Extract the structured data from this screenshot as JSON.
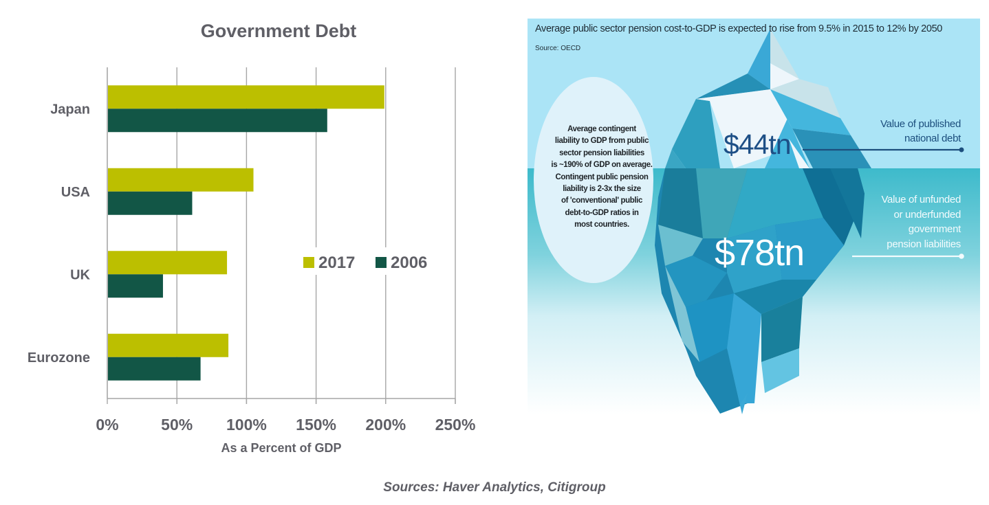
{
  "chart_data": {
    "type": "bar",
    "orientation": "horizontal",
    "title": "Government Debt",
    "xlabel": "As a Percent of GDP",
    "ylabel": "",
    "categories": [
      "Japan",
      "USA",
      "UK",
      "Eurozone"
    ],
    "series": [
      {
        "name": "2017",
        "color": "#bcbf00",
        "values": [
          199,
          105,
          86,
          87
        ]
      },
      {
        "name": "2006",
        "color": "#125646",
        "values": [
          158,
          61,
          40,
          67
        ]
      }
    ],
    "xlim": [
      0,
      250
    ],
    "x_ticks": [
      0,
      50,
      100,
      150,
      200,
      250
    ],
    "x_tick_labels": [
      "0%",
      "50%",
      "100%",
      "150%",
      "200%",
      "250%"
    ],
    "grid": "vertical",
    "legend": {
      "placement": "center-right",
      "entries": [
        "2017",
        "2006"
      ]
    }
  },
  "infographic": {
    "headline": "Average public sector pension cost-to-GDP is expected to rise from 9.5% in 2015 to 12% by 2050",
    "source": "Source: OECD",
    "bubble_lines": [
      "Average contingent",
      "liability to GDP from public",
      "sector pension liabilities",
      "is ~190% of GDP on average.",
      "Contingent public pension",
      "liability is 2-3x the size",
      "of 'conventional' public",
      "debt-to-GDP ratios in",
      "most countries."
    ],
    "above_water_value": "$44tn",
    "above_water_label_lines": [
      "Value of published",
      "national debt"
    ],
    "below_water_value": "$78tn",
    "below_water_label_lines": [
      "Value of unfunded",
      "or underfunded",
      "government",
      "pension liabilities"
    ],
    "colors": {
      "sky": "#a8e3f5",
      "water": "#3fbccb",
      "ice_dark": "#1a7d9b",
      "ice_light": "#eef6fb"
    }
  },
  "footer": {
    "sources": "Sources: Haver Analytics, Citigroup"
  }
}
